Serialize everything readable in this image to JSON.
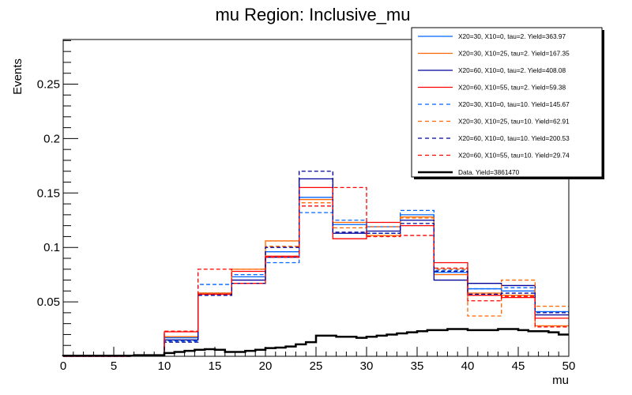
{
  "chart_data": {
    "type": "line",
    "subtype": "step-histogram",
    "title": "mu Region: Inclusive_mu",
    "xlabel": "mu",
    "ylabel": "Events",
    "xlim": [
      0,
      50
    ],
    "ylim": [
      0,
      0.291
    ],
    "xticks": [
      "0",
      "5",
      "10",
      "15",
      "20",
      "25",
      "30",
      "35",
      "40",
      "45",
      "50"
    ],
    "yticks": [
      "0.05",
      "0.1",
      "0.15",
      "0.2",
      "0.25"
    ],
    "ytick_values": [
      0.05,
      0.1,
      0.15,
      0.2,
      0.25
    ],
    "xtick_values": [
      0,
      5,
      10,
      15,
      20,
      25,
      30,
      35,
      40,
      45,
      50
    ],
    "grid": false,
    "legend_position": "top-right",
    "bin_edges": [
      0,
      3.333,
      6.667,
      10,
      13.333,
      16.667,
      20,
      23.333,
      26.667,
      30,
      33.333,
      36.667,
      40,
      43.333,
      46.667,
      50
    ],
    "series": [
      {
        "name": "X20=30, X10=0, tau=2. Yield=363.97",
        "color": "#0066ff",
        "dash": false,
        "values": [
          0,
          0,
          0.001,
          0.017,
          0.058,
          0.073,
          0.096,
          0.146,
          0.121,
          0.119,
          0.13,
          0.077,
          0.062,
          0.06,
          0.041
        ]
      },
      {
        "name": "X20=30, X10=25, tau=2. Yield=167.35",
        "color": "#ff6600",
        "dash": false,
        "values": [
          0,
          0,
          0.001,
          0.018,
          0.058,
          0.08,
          0.106,
          0.144,
          0.123,
          0.111,
          0.128,
          0.075,
          0.058,
          0.056,
          0.028
        ]
      },
      {
        "name": "X20=60, X10=0, tau=2. Yield=408.08",
        "color": "#000099",
        "dash": false,
        "values": [
          0,
          0,
          0.001,
          0.015,
          0.057,
          0.07,
          0.091,
          0.163,
          0.113,
          0.115,
          0.125,
          0.07,
          0.067,
          0.065,
          0.038
        ]
      },
      {
        "name": "X20=60, X10=55, tau=2. Yield=59.38",
        "color": "#ff0000",
        "dash": false,
        "values": [
          0,
          0,
          0.001,
          0.0225,
          0.057,
          0.078,
          0.092,
          0.155,
          0.108,
          0.123,
          0.12,
          0.086,
          0.056,
          0.054,
          0.035
        ]
      },
      {
        "name": "X20=30, X10=0, tau=10. Yield=145.67",
        "color": "#0066ff",
        "dash": true,
        "values": [
          0,
          0,
          0.001,
          0.014,
          0.066,
          0.075,
          0.086,
          0.132,
          0.125,
          0.113,
          0.134,
          0.079,
          0.062,
          0.063,
          0.041
        ]
      },
      {
        "name": "X20=30, X10=25, tau=10. Yield=62.91",
        "color": "#ff6600",
        "dash": true,
        "values": [
          0,
          0,
          0.001,
          0.023,
          0.058,
          0.08,
          0.101,
          0.141,
          0.118,
          0.119,
          0.127,
          0.08,
          0.037,
          0.07,
          0.046
        ]
      },
      {
        "name": "X20=60, X10=0, tau=10. Yield=200.53",
        "color": "#000099",
        "dash": true,
        "values": [
          0,
          0,
          0.001,
          0.013,
          0.056,
          0.067,
          0.1,
          0.17,
          0.114,
          0.113,
          0.122,
          0.078,
          0.057,
          0.058,
          0.04
        ]
      },
      {
        "name": "X20=60, X10=55, tau=10. Yield=29.74",
        "color": "#ff0000",
        "dash": true,
        "values": [
          0,
          0,
          0.001,
          0.023,
          0.08,
          0.067,
          0.091,
          0.138,
          0.155,
          0.11,
          0.111,
          0.081,
          0.051,
          0.055,
          0.027
        ]
      },
      {
        "name": "Data. Yield=3861470",
        "color": "#000000",
        "dash": false,
        "thick": true,
        "bin_width": 1,
        "values": [
          0.0005,
          0.0005,
          0.0005,
          0.0005,
          0.0005,
          0.0005,
          0.0005,
          0.001,
          0.001,
          0.001,
          0.003,
          0.004,
          0.005,
          0.006,
          0.0065,
          0.006,
          0.004,
          0.004,
          0.005,
          0.006,
          0.0075,
          0.008,
          0.009,
          0.011,
          0.013,
          0.019,
          0.019,
          0.018,
          0.018,
          0.017,
          0.018,
          0.019,
          0.02,
          0.021,
          0.022,
          0.023,
          0.024,
          0.024,
          0.025,
          0.025,
          0.024,
          0.024,
          0.024,
          0.025,
          0.025,
          0.024,
          0.023,
          0.023,
          0.022,
          0.02
        ]
      }
    ]
  }
}
